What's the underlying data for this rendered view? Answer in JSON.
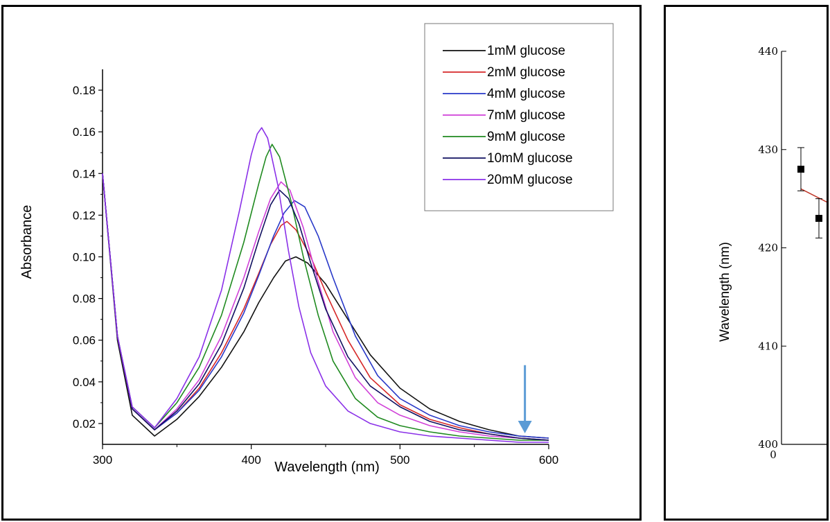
{
  "chart_data": [
    {
      "type": "line",
      "title": "",
      "xlabel": "Wavelength (nm)",
      "ylabel": "Absorbance",
      "xlim": [
        300,
        600
      ],
      "ylim": [
        0.01,
        0.19
      ],
      "x_ticks": [
        300,
        400,
        500,
        600
      ],
      "y_ticks": [
        0.02,
        0.04,
        0.06,
        0.08,
        0.1,
        0.12,
        0.14,
        0.16,
        0.18
      ],
      "x_tick_labels": [
        "300",
        "400",
        "500",
        "600"
      ],
      "y_tick_labels": [
        "0.02",
        "0.04",
        "0.06",
        "0.08",
        "0.10",
        "0.12",
        "0.14",
        "0.16",
        "0.18"
      ],
      "legend_placement": "top-right",
      "grid": false,
      "annotation": {
        "type": "arrow",
        "direction": "down",
        "x": 584,
        "y_from": 0.048,
        "y_to": 0.016,
        "color": "#5b9bd5"
      },
      "series": [
        {
          "name": "1mM glucose",
          "color": "#111111",
          "points": [
            [
              300,
              0.14
            ],
            [
              310,
              0.06
            ],
            [
              320,
              0.024
            ],
            [
              335,
              0.014
            ],
            [
              350,
              0.022
            ],
            [
              365,
              0.033
            ],
            [
              380,
              0.047
            ],
            [
              395,
              0.064
            ],
            [
              405,
              0.078
            ],
            [
              415,
              0.09
            ],
            [
              423,
              0.098
            ],
            [
              430,
              0.1
            ],
            [
              438,
              0.097
            ],
            [
              450,
              0.087
            ],
            [
              465,
              0.07
            ],
            [
              480,
              0.053
            ],
            [
              500,
              0.037
            ],
            [
              520,
              0.027
            ],
            [
              540,
              0.021
            ],
            [
              560,
              0.017
            ],
            [
              580,
              0.014
            ],
            [
              600,
              0.013
            ]
          ]
        },
        {
          "name": "2mM glucose",
          "color": "#d62728",
          "points": [
            [
              300,
              0.14
            ],
            [
              310,
              0.062
            ],
            [
              320,
              0.027
            ],
            [
              335,
              0.017
            ],
            [
              350,
              0.025
            ],
            [
              365,
              0.037
            ],
            [
              380,
              0.054
            ],
            [
              395,
              0.075
            ],
            [
              405,
              0.092
            ],
            [
              413,
              0.106
            ],
            [
              420,
              0.115
            ],
            [
              424,
              0.117
            ],
            [
              430,
              0.113
            ],
            [
              440,
              0.1
            ],
            [
              450,
              0.083
            ],
            [
              465,
              0.06
            ],
            [
              480,
              0.042
            ],
            [
              500,
              0.029
            ],
            [
              520,
              0.022
            ],
            [
              540,
              0.018
            ],
            [
              560,
              0.015
            ],
            [
              580,
              0.013
            ],
            [
              600,
              0.012
            ]
          ]
        },
        {
          "name": "4mM glucose",
          "color": "#2838c8",
          "points": [
            [
              300,
              0.14
            ],
            [
              310,
              0.062
            ],
            [
              320,
              0.027
            ],
            [
              335,
              0.017
            ],
            [
              350,
              0.025
            ],
            [
              365,
              0.036
            ],
            [
              380,
              0.052
            ],
            [
              395,
              0.073
            ],
            [
              405,
              0.091
            ],
            [
              415,
              0.11
            ],
            [
              422,
              0.121
            ],
            [
              429,
              0.127
            ],
            [
              436,
              0.124
            ],
            [
              445,
              0.11
            ],
            [
              455,
              0.09
            ],
            [
              470,
              0.062
            ],
            [
              485,
              0.043
            ],
            [
              500,
              0.032
            ],
            [
              520,
              0.024
            ],
            [
              540,
              0.019
            ],
            [
              560,
              0.016
            ],
            [
              580,
              0.014
            ],
            [
              600,
              0.013
            ]
          ]
        },
        {
          "name": "7mM glucose",
          "color": "#d040d8",
          "points": [
            [
              300,
              0.14
            ],
            [
              310,
              0.062
            ],
            [
              320,
              0.027
            ],
            [
              335,
              0.017
            ],
            [
              350,
              0.027
            ],
            [
              365,
              0.041
            ],
            [
              380,
              0.062
            ],
            [
              395,
              0.09
            ],
            [
              405,
              0.112
            ],
            [
              413,
              0.128
            ],
            [
              420,
              0.136
            ],
            [
              426,
              0.132
            ],
            [
              435,
              0.114
            ],
            [
              445,
              0.088
            ],
            [
              455,
              0.064
            ],
            [
              470,
              0.042
            ],
            [
              485,
              0.03
            ],
            [
              500,
              0.024
            ],
            [
              520,
              0.019
            ],
            [
              540,
              0.016
            ],
            [
              560,
              0.014
            ],
            [
              580,
              0.013
            ],
            [
              600,
              0.012
            ]
          ]
        },
        {
          "name": "9mM glucose",
          "color": "#1f8a1f",
          "points": [
            [
              300,
              0.14
            ],
            [
              310,
              0.062
            ],
            [
              320,
              0.028
            ],
            [
              335,
              0.018
            ],
            [
              350,
              0.03
            ],
            [
              365,
              0.047
            ],
            [
              380,
              0.072
            ],
            [
              395,
              0.107
            ],
            [
              405,
              0.135
            ],
            [
              410,
              0.148
            ],
            [
              414,
              0.154
            ],
            [
              419,
              0.148
            ],
            [
              427,
              0.126
            ],
            [
              435,
              0.1
            ],
            [
              445,
              0.072
            ],
            [
              455,
              0.05
            ],
            [
              470,
              0.032
            ],
            [
              485,
              0.023
            ],
            [
              500,
              0.019
            ],
            [
              520,
              0.016
            ],
            [
              540,
              0.014
            ],
            [
              560,
              0.013
            ],
            [
              580,
              0.012
            ],
            [
              600,
              0.012
            ]
          ]
        },
        {
          "name": "10mM glucose",
          "color": "#101060",
          "points": [
            [
              300,
              0.14
            ],
            [
              310,
              0.062
            ],
            [
              320,
              0.027
            ],
            [
              335,
              0.017
            ],
            [
              350,
              0.026
            ],
            [
              365,
              0.039
            ],
            [
              380,
              0.058
            ],
            [
              395,
              0.085
            ],
            [
              405,
              0.108
            ],
            [
              413,
              0.125
            ],
            [
              419,
              0.132
            ],
            [
              425,
              0.128
            ],
            [
              432,
              0.116
            ],
            [
              440,
              0.097
            ],
            [
              450,
              0.075
            ],
            [
              465,
              0.052
            ],
            [
              480,
              0.038
            ],
            [
              500,
              0.028
            ],
            [
              520,
              0.021
            ],
            [
              540,
              0.017
            ],
            [
              560,
              0.015
            ],
            [
              580,
              0.013
            ],
            [
              600,
              0.012
            ]
          ]
        },
        {
          "name": "20mM glucose",
          "color": "#8a30e8",
          "points": [
            [
              300,
              0.14
            ],
            [
              310,
              0.062
            ],
            [
              320,
              0.028
            ],
            [
              335,
              0.018
            ],
            [
              350,
              0.032
            ],
            [
              365,
              0.052
            ],
            [
              380,
              0.084
            ],
            [
              392,
              0.122
            ],
            [
              400,
              0.149
            ],
            [
              404,
              0.159
            ],
            [
              407,
              0.162
            ],
            [
              411,
              0.157
            ],
            [
              418,
              0.134
            ],
            [
              425,
              0.103
            ],
            [
              432,
              0.076
            ],
            [
              440,
              0.054
            ],
            [
              450,
              0.038
            ],
            [
              465,
              0.026
            ],
            [
              480,
              0.02
            ],
            [
              500,
              0.016
            ],
            [
              520,
              0.014
            ],
            [
              540,
              0.013
            ],
            [
              560,
              0.012
            ],
            [
              580,
              0.011
            ],
            [
              600,
              0.011
            ]
          ]
        }
      ]
    },
    {
      "type": "scatter",
      "title": "",
      "xlabel": "",
      "ylabel": "Wavelength (nm)",
      "ylim": [
        400,
        440
      ],
      "y_ticks": [
        400,
        410,
        420,
        430,
        440
      ],
      "y_tick_labels": [
        "400",
        "410",
        "420",
        "430",
        "440"
      ],
      "x_tick_labels": [
        "0"
      ],
      "points": [
        {
          "x": 1,
          "y": 428,
          "err": 2.2
        },
        {
          "x": 2,
          "y": 423,
          "err": 2.0
        }
      ],
      "fit_line": {
        "color": "#c0392b",
        "points": [
          [
            1,
            426
          ],
          [
            2.5,
            424.6
          ]
        ]
      }
    }
  ]
}
